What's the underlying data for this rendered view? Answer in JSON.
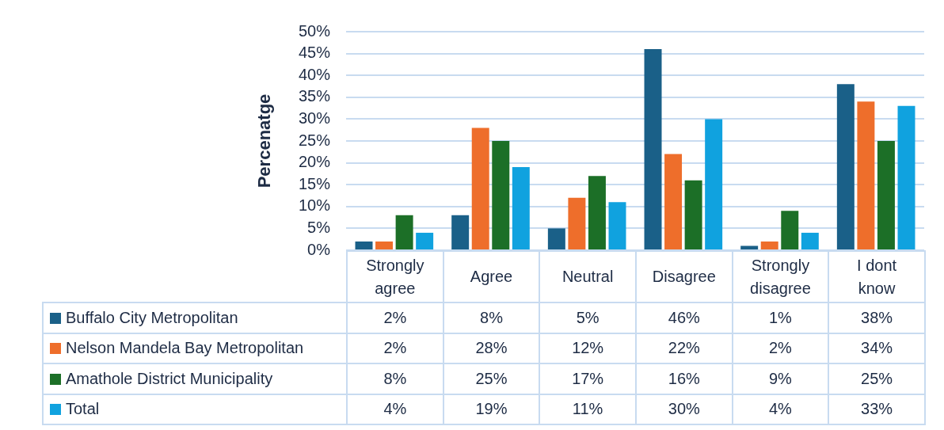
{
  "chart_data": {
    "type": "bar",
    "ylabel": "Percenatge",
    "categories": [
      "Strongly agree",
      "Agree",
      "Neutral",
      "Disagree",
      "Strongly disagree",
      "I dont know"
    ],
    "series": [
      {
        "name": "Buffalo City Metropolitan",
        "color": "#1a6088",
        "values": [
          2,
          8,
          5,
          46,
          1,
          38
        ],
        "value_labels": [
          "2%",
          "8%",
          "5%",
          "46%",
          "1%",
          "38%"
        ]
      },
      {
        "name": "Nelson Mandela Bay Metropolitan",
        "color": "#ee6e2b",
        "values": [
          2,
          28,
          12,
          22,
          2,
          34
        ],
        "value_labels": [
          "2%",
          "28%",
          "12%",
          "22%",
          "2%",
          "34%"
        ]
      },
      {
        "name": "Amathole District Municipality",
        "color": "#1c6f27",
        "values": [
          8,
          25,
          17,
          16,
          9,
          25
        ],
        "value_labels": [
          "8%",
          "25%",
          "17%",
          "16%",
          "9%",
          "25%"
        ]
      },
      {
        "name": "Total",
        "color": "#10a2df",
        "values": [
          4,
          19,
          11,
          30,
          4,
          33
        ],
        "value_labels": [
          "4%",
          "19%",
          "11%",
          "30%",
          "4%",
          "33%"
        ]
      }
    ],
    "ylim": [
      0,
      50
    ],
    "yticks": [
      {
        "value": 0,
        "label": "0%"
      },
      {
        "value": 5,
        "label": "5%"
      },
      {
        "value": 10,
        "label": "10%"
      },
      {
        "value": 15,
        "label": "15%"
      },
      {
        "value": 20,
        "label": "20%"
      },
      {
        "value": 25,
        "label": "25%"
      },
      {
        "value": 30,
        "label": "30%"
      },
      {
        "value": 35,
        "label": "35%"
      },
      {
        "value": 40,
        "label": "40%"
      },
      {
        "value": 45,
        "label": "45%"
      },
      {
        "value": 50,
        "label": "50%"
      }
    ],
    "grid": "y",
    "legend": "bottom"
  }
}
